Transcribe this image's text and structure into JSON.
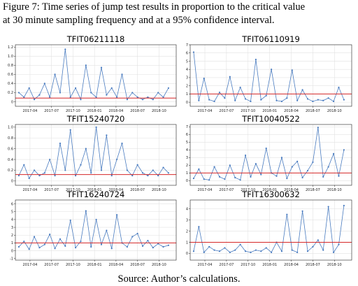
{
  "caption": [
    "Figure 7: Time series of jump test results in proportion to the critical value",
    "at 30 minute sampling frequency and at a 95% confidence interval."
  ],
  "source": "Source: Author’s calculations.",
  "chart_data": [
    {
      "type": "line",
      "title": "TFIT06211118",
      "color": "#4a7cc0",
      "grid": true,
      "critical_value": 0.08,
      "critical_color": "#d62728",
      "x": [
        2017.12,
        2017.18,
        2017.24,
        2017.3,
        2017.36,
        2017.42,
        2017.48,
        2017.54,
        2017.6,
        2017.66,
        2017.72,
        2017.78,
        2017.84,
        2017.9,
        2017.96,
        2018.02,
        2018.08,
        2018.14,
        2018.2,
        2018.26,
        2018.32,
        2018.38,
        2018.44,
        2018.5,
        2018.56,
        2018.62,
        2018.68,
        2018.74,
        2018.8,
        2018.86
      ],
      "values": [
        0.2,
        0.1,
        0.3,
        0.05,
        0.15,
        0.4,
        0.1,
        0.6,
        0.2,
        1.15,
        0.1,
        0.3,
        0.05,
        0.8,
        0.2,
        0.1,
        0.75,
        0.15,
        0.3,
        0.1,
        0.6,
        0.05,
        0.2,
        0.1,
        0.05,
        0.1,
        0.05,
        0.2,
        0.1,
        0.3
      ],
      "xlim": [
        2017.08,
        2018.95
      ],
      "xticks": [
        {
          "value": 2017.25,
          "label": "2017-04"
        },
        {
          "value": 2017.5,
          "label": "2017-07"
        },
        {
          "value": 2017.75,
          "label": "2017-10"
        },
        {
          "value": 2018.0,
          "label": "2018-01"
        },
        {
          "value": 2018.25,
          "label": "2018-04"
        },
        {
          "value": 2018.5,
          "label": "2018-07"
        },
        {
          "value": 2018.75,
          "label": "2018-10"
        }
      ],
      "ylim": [
        -0.1,
        1.25
      ],
      "yticks": [
        0,
        0.2,
        0.4,
        0.6,
        0.8,
        {
          "value": 1,
          "label": "1.0"
        },
        1.2
      ]
    },
    {
      "type": "line",
      "title": "TFIT06110919",
      "color": "#4a7cc0",
      "grid": true,
      "critical_value": 1,
      "critical_color": "#d62728",
      "x": [
        2017.12,
        2017.18,
        2017.24,
        2017.3,
        2017.36,
        2017.42,
        2017.48,
        2017.54,
        2017.6,
        2017.66,
        2017.72,
        2017.78,
        2017.84,
        2017.9,
        2017.96,
        2018.02,
        2018.08,
        2018.14,
        2018.2,
        2018.26,
        2018.32,
        2018.38,
        2018.44,
        2018.5,
        2018.56,
        2018.62,
        2018.68,
        2018.74,
        2018.8,
        2018.86
      ],
      "values": [
        6.1,
        0.2,
        2.9,
        0.3,
        0.1,
        1.2,
        0.5,
        3.1,
        0.2,
        1.8,
        0.4,
        0.1,
        5.2,
        0.3,
        0.8,
        4.0,
        0.2,
        0.1,
        0.5,
        3.9,
        0.2,
        1.5,
        0.4,
        0.1,
        0.3,
        0.2,
        0.5,
        0.1,
        1.8,
        0.3
      ],
      "xlim": [
        2017.08,
        2018.95
      ],
      "xticks": [
        {
          "value": 2017.25,
          "label": "2017-04"
        },
        {
          "value": 2017.5,
          "label": "2017-07"
        },
        {
          "value": 2017.75,
          "label": "2017-10"
        },
        {
          "value": 2018.0,
          "label": "2018-01"
        },
        {
          "value": 2018.25,
          "label": "2018-04"
        },
        {
          "value": 2018.5,
          "label": "2018-07"
        },
        {
          "value": 2018.75,
          "label": "2018-10"
        }
      ],
      "ylim": [
        -0.5,
        7
      ],
      "yticks": [
        0,
        1,
        2,
        3,
        4,
        5,
        6,
        7
      ]
    },
    {
      "type": "line",
      "title": "TFIT15240720",
      "color": "#4a7cc0",
      "grid": true,
      "critical_value": 0.12,
      "critical_color": "#d62728",
      "x": [
        2017.12,
        2017.18,
        2017.24,
        2017.3,
        2017.36,
        2017.42,
        2017.48,
        2017.54,
        2017.6,
        2017.66,
        2017.72,
        2017.78,
        2017.84,
        2017.9,
        2017.96,
        2018.02,
        2018.08,
        2018.14,
        2018.2,
        2018.26,
        2018.32,
        2018.38,
        2018.44,
        2018.5,
        2018.56,
        2018.62,
        2018.68,
        2018.74,
        2018.8,
        2018.86
      ],
      "values": [
        0.1,
        0.3,
        0.05,
        0.2,
        0.1,
        0.15,
        0.4,
        0.1,
        0.7,
        0.2,
        0.95,
        0.1,
        0.3,
        0.6,
        0.15,
        1.0,
        0.2,
        0.85,
        0.1,
        0.4,
        0.7,
        0.2,
        0.1,
        0.3,
        0.15,
        0.1,
        0.2,
        0.1,
        0.25,
        0.15
      ],
      "xlim": [
        2017.08,
        2018.95
      ],
      "xticks": [
        {
          "value": 2017.25,
          "label": "2017-04"
        },
        {
          "value": 2017.5,
          "label": "2017-07"
        },
        {
          "value": 2017.75,
          "label": "2017-10"
        },
        {
          "value": 2018.0,
          "label": "2018-01"
        },
        {
          "value": 2018.25,
          "label": "2018-04"
        },
        {
          "value": 2018.5,
          "label": "2018-07"
        },
        {
          "value": 2018.75,
          "label": "2018-10"
        }
      ],
      "ylim": [
        -0.08,
        1.05
      ],
      "yticks": [
        0,
        0.2,
        0.4,
        0.6,
        0.8,
        {
          "value": 1,
          "label": "1.0"
        }
      ]
    },
    {
      "type": "line",
      "title": "TFIT10040522",
      "color": "#4a7cc0",
      "grid": true,
      "critical_value": 1,
      "critical_color": "#d62728",
      "x": [
        2017.12,
        2017.18,
        2017.24,
        2017.3,
        2017.36,
        2017.42,
        2017.48,
        2017.54,
        2017.6,
        2017.66,
        2017.72,
        2017.78,
        2017.84,
        2017.9,
        2017.96,
        2018.02,
        2018.08,
        2018.14,
        2018.2,
        2018.26,
        2018.32,
        2018.38,
        2018.44,
        2018.5,
        2018.56,
        2018.62,
        2018.68,
        2018.74,
        2018.8,
        2018.86
      ],
      "values": [
        0.3,
        1.5,
        0.2,
        0.1,
        1.8,
        0.5,
        0.2,
        2.0,
        0.4,
        0.1,
        3.3,
        0.5,
        2.2,
        0.8,
        4.2,
        1.0,
        0.6,
        3.0,
        0.3,
        1.8,
        2.5,
        0.4,
        1.3,
        2.4,
        6.9,
        0.5,
        1.8,
        3.5,
        0.6,
        4.0
      ],
      "xlim": [
        2017.08,
        2018.95
      ],
      "xticks": [
        {
          "value": 2017.25,
          "label": "2017-04"
        },
        {
          "value": 2017.5,
          "label": "2017-07"
        },
        {
          "value": 2017.75,
          "label": "2017-10"
        },
        {
          "value": 2018.0,
          "label": "2018-01"
        },
        {
          "value": 2018.25,
          "label": "2018-04"
        },
        {
          "value": 2018.5,
          "label": "2018-07"
        },
        {
          "value": 2018.75,
          "label": "2018-10"
        }
      ],
      "ylim": [
        -0.6,
        7.3
      ],
      "yticks": [
        0,
        1,
        2,
        3,
        4,
        5,
        6,
        7
      ]
    },
    {
      "type": "line",
      "title": "TFIT16240724",
      "color": "#4a7cc0",
      "grid": true,
      "critical_value": 1,
      "critical_color": "#d62728",
      "x": [
        2017.12,
        2017.18,
        2017.24,
        2017.3,
        2017.36,
        2017.42,
        2017.48,
        2017.54,
        2017.6,
        2017.66,
        2017.72,
        2017.78,
        2017.84,
        2017.9,
        2017.96,
        2018.02,
        2018.08,
        2018.14,
        2018.2,
        2018.26,
        2018.32,
        2018.38,
        2018.44,
        2018.5,
        2018.56,
        2018.62,
        2018.68,
        2018.74,
        2018.8,
        2018.86
      ],
      "values": [
        0.5,
        1.2,
        0.2,
        1.8,
        0.4,
        0.8,
        2.1,
        0.3,
        1.5,
        0.6,
        3.9,
        0.4,
        1.2,
        5.1,
        0.5,
        4.0,
        0.8,
        2.6,
        0.3,
        4.6,
        1.0,
        0.5,
        1.8,
        2.2,
        0.6,
        1.3,
        0.4,
        0.9,
        0.5,
        0.7
      ],
      "xlim": [
        2017.08,
        2018.95
      ],
      "xticks": [
        {
          "value": 2017.25,
          "label": "2017-04"
        },
        {
          "value": 2017.5,
          "label": "2017-07"
        },
        {
          "value": 2017.75,
          "label": "2017-10"
        },
        {
          "value": 2018.0,
          "label": "2018-01"
        },
        {
          "value": 2018.25,
          "label": "2018-04"
        },
        {
          "value": 2018.5,
          "label": "2018-07"
        },
        {
          "value": 2018.75,
          "label": "2018-10"
        }
      ],
      "ylim": [
        -1.2,
        6.5
      ],
      "yticks": [
        -1,
        0,
        1,
        2,
        3,
        4,
        5,
        6
      ]
    },
    {
      "type": "line",
      "title": "TFIT16300632",
      "color": "#4a7cc0",
      "grid": true,
      "critical_value": 1,
      "critical_color": "#d62728",
      "x": [
        2017.12,
        2017.18,
        2017.24,
        2017.3,
        2017.36,
        2017.42,
        2017.48,
        2017.54,
        2017.6,
        2017.66,
        2017.72,
        2017.78,
        2017.84,
        2017.9,
        2017.96,
        2018.02,
        2018.08,
        2018.14,
        2018.2,
        2018.26,
        2018.32,
        2018.38,
        2018.44,
        2018.5,
        2018.56,
        2018.62,
        2018.68,
        2018.74,
        2018.8,
        2018.86
      ],
      "values": [
        0.2,
        2.4,
        0.1,
        0.6,
        0.3,
        0.2,
        0.5,
        0.1,
        0.3,
        0.8,
        0.2,
        0.1,
        0.3,
        0.2,
        0.5,
        0.1,
        1.0,
        0.2,
        3.5,
        0.3,
        0.1,
        3.8,
        0.2,
        0.6,
        1.2,
        0.3,
        4.2,
        0.1,
        0.8,
        4.3
      ],
      "xlim": [
        2017.08,
        2018.95
      ],
      "xticks": [
        {
          "value": 2017.25,
          "label": "2017-04"
        },
        {
          "value": 2017.5,
          "label": "2017-07"
        },
        {
          "value": 2017.75,
          "label": "2017-10"
        },
        {
          "value": 2018.0,
          "label": "2018-01"
        },
        {
          "value": 2018.25,
          "label": "2018-04"
        },
        {
          "value": 2018.5,
          "label": "2018-07"
        },
        {
          "value": 2018.75,
          "label": "2018-10"
        }
      ],
      "ylim": [
        -0.6,
        4.8
      ],
      "yticks": [
        0,
        1,
        2,
        3,
        4
      ]
    }
  ]
}
